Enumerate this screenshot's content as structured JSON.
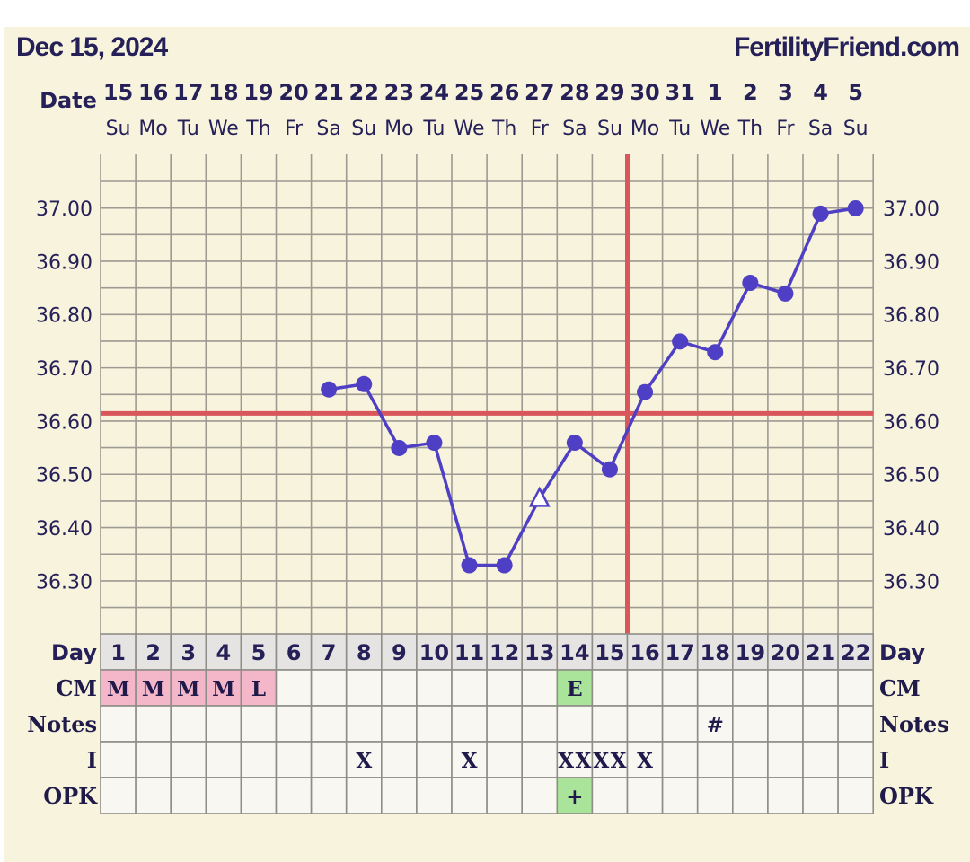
{
  "header": {
    "chart_date": "Dec 15, 2024",
    "site": "FertilityFriend.com",
    "date_label": "Date"
  },
  "chart_data": {
    "type": "line",
    "title": "",
    "dates": [
      "15",
      "16",
      "17",
      "18",
      "19",
      "20",
      "21",
      "22",
      "23",
      "24",
      "25",
      "26",
      "27",
      "28",
      "29",
      "30",
      "31",
      "1",
      "2",
      "3",
      "4",
      "5"
    ],
    "weekdays": [
      "Su",
      "Mo",
      "Tu",
      "We",
      "Th",
      "Fr",
      "Sa",
      "Su",
      "Mo",
      "Tu",
      "We",
      "Th",
      "Fr",
      "Sa",
      "Su",
      "Mo",
      "Tu",
      "We",
      "Th",
      "Fr",
      "Sa",
      "Su"
    ],
    "cycle_days": [
      "1",
      "2",
      "3",
      "4",
      "5",
      "6",
      "7",
      "8",
      "9",
      "10",
      "11",
      "12",
      "13",
      "14",
      "15",
      "16",
      "17",
      "18",
      "19",
      "20",
      "21",
      "22"
    ],
    "y_ticks": [
      "37.00",
      "36.90",
      "36.80",
      "36.70",
      "36.60",
      "36.50",
      "36.40",
      "36.30"
    ],
    "ylim": [
      36.2,
      37.1
    ],
    "series": [
      {
        "values": [
          null,
          null,
          null,
          null,
          null,
          null,
          36.66,
          36.67,
          36.55,
          36.56,
          36.33,
          36.33,
          36.455,
          36.56,
          36.51,
          36.655,
          36.75,
          36.73,
          36.86,
          36.84,
          36.99,
          37.0
        ],
        "discarded_day_index": 12
      }
    ],
    "coverline": 36.615,
    "ovulation_day": 15,
    "grid": true,
    "rows": [
      {
        "label": "Day",
        "cells": "cycle_days"
      },
      {
        "label": "CM",
        "cells": [
          "M",
          "M",
          "M",
          "M",
          "L",
          "",
          "",
          "",
          "",
          "",
          "",
          "",
          "",
          "E",
          "",
          "",
          "",
          "",
          "",
          "",
          "",
          ""
        ]
      },
      {
        "label": "Notes",
        "cells": [
          "",
          "",
          "",
          "",
          "",
          "",
          "",
          "",
          "",
          "",
          "",
          "",
          "",
          "",
          "",
          "",
          "",
          "#",
          "",
          "",
          "",
          ""
        ]
      },
      {
        "label": "I",
        "cells": [
          "",
          "",
          "",
          "",
          "",
          "",
          "",
          "X",
          "",
          "",
          "X",
          "",
          "",
          "XX",
          "XX",
          "X",
          "",
          "",
          "",
          "",
          "",
          ""
        ]
      },
      {
        "label": "OPK",
        "cells": [
          "",
          "",
          "",
          "",
          "",
          "",
          "",
          "",
          "",
          "",
          "",
          "",
          "",
          "+",
          "",
          "",
          "",
          "",
          "",
          "",
          "",
          ""
        ]
      }
    ],
    "colors": {
      "line": "#4e3fc4",
      "coverline": "#d9575a",
      "menses_cell": "#f4b6c9",
      "fertile_cell": "#a9e49a",
      "day_row": "#e6e4e2",
      "background": "#f7f3dc"
    }
  }
}
